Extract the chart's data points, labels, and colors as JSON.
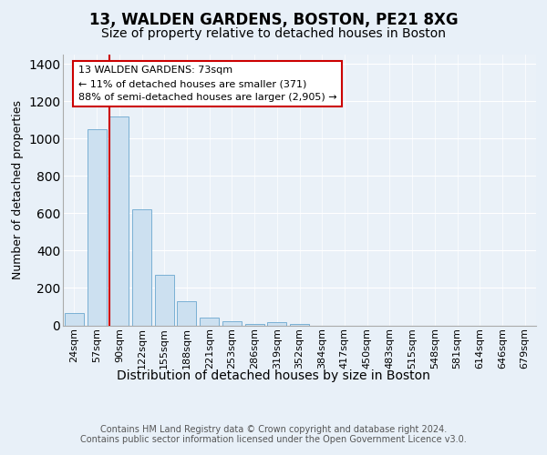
{
  "title1": "13, WALDEN GARDENS, BOSTON, PE21 8XG",
  "title2": "Size of property relative to detached houses in Boston",
  "xlabel": "Distribution of detached houses by size in Boston",
  "ylabel": "Number of detached properties",
  "categories": [
    "24sqm",
    "57sqm",
    "90sqm",
    "122sqm",
    "155sqm",
    "188sqm",
    "221sqm",
    "253sqm",
    "286sqm",
    "319sqm",
    "352sqm",
    "384sqm",
    "417sqm",
    "450sqm",
    "483sqm",
    "515sqm",
    "548sqm",
    "581sqm",
    "614sqm",
    "646sqm",
    "679sqm"
  ],
  "values": [
    65,
    1050,
    1120,
    620,
    270,
    130,
    40,
    20,
    5,
    15,
    5,
    0,
    0,
    0,
    0,
    0,
    0,
    0,
    0,
    0,
    0
  ],
  "bar_color": "#cce0f0",
  "bar_edge_color": "#7ab0d4",
  "vline_color": "#cc0000",
  "annotation_text": "13 WALDEN GARDENS: 73sqm\n← 11% of detached houses are smaller (371)\n88% of semi-detached houses are larger (2,905) →",
  "annotation_box_color": "#ffffff",
  "annotation_box_edge": "#cc0000",
  "ylim": [
    0,
    1450
  ],
  "yticks": [
    0,
    200,
    400,
    600,
    800,
    1000,
    1200,
    1400
  ],
  "bg_color": "#e8f0f8",
  "plot_bg_color": "#eaf1f8",
  "footer": "Contains HM Land Registry data © Crown copyright and database right 2024.\nContains public sector information licensed under the Open Government Licence v3.0.",
  "title1_fontsize": 12,
  "title2_fontsize": 10,
  "xlabel_fontsize": 10,
  "ylabel_fontsize": 9,
  "footer_fontsize": 7,
  "tick_fontsize": 8
}
